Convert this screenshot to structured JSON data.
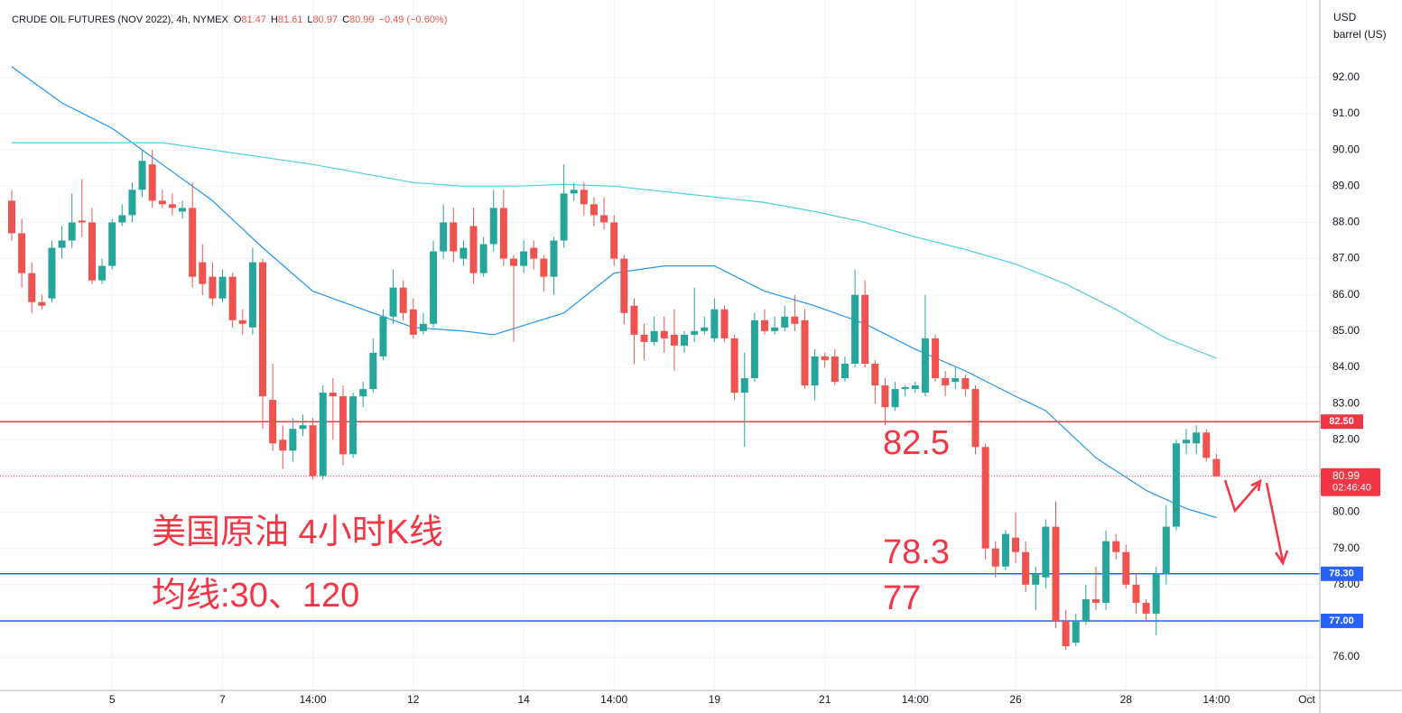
{
  "chart_data": {
    "type": "candlestick",
    "header": {
      "title": "CRUDE OIL FUTURES (NOV 2022), 4h, NYMEX",
      "ohlc": [
        {
          "label": "O",
          "value": 81.47
        },
        {
          "label": "H",
          "value": 81.61
        },
        {
          "label": "L",
          "value": 80.97
        },
        {
          "label": "C",
          "value": 80.99
        }
      ],
      "change": "−0.49 (−0.60%)"
    },
    "unit": [
      "USD",
      "barrel (US)"
    ],
    "categories": [
      null,
      null,
      null,
      null,
      null,
      null,
      null,
      null,
      null,
      null,
      "5",
      null,
      null,
      null,
      null,
      null,
      null,
      null,
      null,
      null,
      null,
      "7",
      null,
      null,
      null,
      null,
      null,
      null,
      null,
      null,
      "14:00",
      null,
      null,
      null,
      null,
      null,
      null,
      null,
      null,
      null,
      "12",
      null,
      null,
      null,
      null,
      null,
      null,
      null,
      null,
      null,
      null,
      "14",
      null,
      null,
      null,
      null,
      null,
      null,
      null,
      null,
      "14:00",
      null,
      null,
      null,
      null,
      null,
      null,
      null,
      null,
      null,
      "19",
      null,
      null,
      null,
      null,
      null,
      null,
      null,
      null,
      null,
      null,
      "21",
      null,
      null,
      null,
      null,
      null,
      null,
      null,
      null,
      "14:00",
      null,
      null,
      null,
      null,
      null,
      null,
      null,
      null,
      null,
      "26",
      null,
      null,
      null,
      null,
      null,
      null,
      null,
      null,
      null,
      null,
      "28",
      null,
      null,
      null,
      null,
      null,
      null,
      null,
      null,
      "14:00",
      null,
      null,
      null,
      null,
      null,
      null,
      null,
      null,
      "Oct",
      null
    ],
    "open": [
      88.6,
      87.7,
      86.6,
      85.8,
      85.9,
      87.3,
      87.5,
      88.05,
      88.0,
      86.4,
      86.8,
      88.0,
      88.2,
      88.9,
      89.6,
      88.6,
      88.5,
      88.3,
      88.4,
      86.9,
      86.5,
      85.9,
      86.5,
      85.3,
      85.1,
      86.9,
      83.1,
      82.0,
      81.7,
      82.3,
      82.4,
      81.0,
      83.3,
      83.2,
      81.6,
      83.2,
      83.4,
      84.3,
      85.4,
      86.2,
      85.6,
      85.0,
      85.2,
      87.2,
      88.0,
      87.0,
      87.9,
      86.6,
      87.4,
      88.4,
      87.0,
      86.8,
      87.3,
      87.0,
      86.5,
      87.5,
      88.8,
      88.9,
      88.5,
      88.2,
      88.0,
      87.0,
      85.7,
      84.9,
      84.7,
      85.0,
      84.9,
      84.6,
      84.9,
      85.0,
      84.8,
      85.6,
      84.8,
      83.3,
      83.7,
      85.3,
      85.0,
      85.1,
      85.4,
      85.3,
      83.5,
      84.3,
      84.3,
      83.7,
      84.1,
      86.0,
      84.1,
      83.5,
      82.9,
      83.4,
      83.4,
      83.3,
      84.8,
      83.7,
      83.6,
      83.7,
      83.4,
      81.8,
      79.0,
      78.5,
      79.3,
      78.9,
      78.0,
      78.2,
      79.6,
      77.0,
      76.4,
      77.0,
      77.6,
      77.5,
      79.2,
      78.9,
      78.0,
      77.5,
      77.2,
      78.3,
      79.6,
      81.9,
      81.9,
      82.2,
      81.47,
      null,
      null,
      null,
      null,
      null,
      null,
      null,
      null,
      null,
      null
    ],
    "high": [
      88.9,
      88.1,
      86.9,
      86.0,
      87.5,
      87.9,
      88.8,
      89.2,
      88.4,
      87.0,
      88.1,
      88.5,
      89.1,
      90.0,
      90.0,
      88.9,
      88.8,
      88.6,
      89.1,
      87.4,
      86.9,
      86.7,
      86.6,
      85.6,
      87.3,
      87.0,
      84.1,
      82.4,
      82.6,
      82.7,
      82.6,
      83.5,
      83.7,
      83.5,
      83.3,
      83.6,
      84.8,
      85.6,
      86.7,
      86.4,
      85.9,
      85.5,
      87.5,
      88.5,
      88.4,
      87.5,
      88.4,
      87.6,
      88.9,
      88.9,
      87.1,
      87.5,
      87.5,
      87.1,
      87.6,
      89.6,
      89.1,
      89.1,
      88.7,
      88.7,
      88.2,
      87.1,
      85.9,
      85.2,
      85.4,
      85.4,
      85.6,
      85.0,
      86.2,
      85.4,
      85.9,
      85.7,
      84.9,
      84.4,
      85.5,
      85.6,
      85.4,
      85.7,
      86.0,
      85.6,
      84.5,
      84.4,
      84.5,
      84.3,
      86.7,
      86.4,
      84.2,
      83.7,
      83.6,
      83.5,
      83.6,
      86.0,
      84.9,
      83.9,
      84.0,
      83.8,
      83.5,
      81.9,
      79.2,
      79.5,
      80.0,
      79.2,
      78.5,
      79.8,
      80.3,
      77.3,
      77.2,
      78.0,
      78.5,
      79.5,
      79.4,
      79.1,
      78.3,
      77.6,
      78.5,
      80.2,
      82.0,
      82.3,
      82.4,
      82.3,
      81.61,
      null,
      null,
      null,
      null,
      null,
      null,
      null,
      null,
      null,
      null
    ],
    "low": [
      87.5,
      86.2,
      85.5,
      85.6,
      85.8,
      87.0,
      87.3,
      87.6,
      86.3,
      86.3,
      86.7,
      87.9,
      88.0,
      88.7,
      88.4,
      88.4,
      88.2,
      88.1,
      86.2,
      86.0,
      85.7,
      85.8,
      85.1,
      84.9,
      84.9,
      82.3,
      81.7,
      81.2,
      81.4,
      82.1,
      80.9,
      80.9,
      82.0,
      81.3,
      81.5,
      82.9,
      83.3,
      84.2,
      85.2,
      85.3,
      84.8,
      84.9,
      85.1,
      87.0,
      86.9,
      86.8,
      86.3,
      86.5,
      87.2,
      86.8,
      84.7,
      86.6,
      86.7,
      86.1,
      86.0,
      87.3,
      88.6,
      88.2,
      87.9,
      87.8,
      86.8,
      85.2,
      84.1,
      84.2,
      84.6,
      84.4,
      83.9,
      84.4,
      84.7,
      84.9,
      84.7,
      84.7,
      83.1,
      81.8,
      83.6,
      84.9,
      84.9,
      85.0,
      85.0,
      83.4,
      83.1,
      84.0,
      83.5,
      83.6,
      84.0,
      84.0,
      83.0,
      82.4,
      82.8,
      83.2,
      83.3,
      83.2,
      83.6,
      83.2,
      83.4,
      83.2,
      81.6,
      78.7,
      78.2,
      78.4,
      78.6,
      77.8,
      77.3,
      77.9,
      76.8,
      76.2,
      76.3,
      76.9,
      77.3,
      77.3,
      78.7,
      77.9,
      77.2,
      77.0,
      76.6,
      78.0,
      79.5,
      81.6,
      81.6,
      81.4,
      80.97,
      null,
      null,
      null,
      null,
      null,
      null,
      null,
      null,
      null,
      null
    ],
    "close": [
      87.7,
      86.6,
      85.8,
      85.7,
      87.3,
      87.5,
      88.0,
      88.0,
      86.4,
      86.8,
      88.0,
      88.2,
      88.9,
      89.7,
      88.6,
      88.5,
      88.4,
      88.4,
      86.5,
      86.3,
      85.9,
      86.5,
      85.3,
      85.2,
      86.9,
      83.2,
      81.9,
      81.7,
      82.3,
      82.4,
      81.0,
      83.3,
      83.2,
      81.6,
      83.2,
      83.4,
      84.4,
      85.4,
      86.2,
      85.5,
      84.9,
      85.2,
      87.2,
      88.0,
      87.2,
      87.3,
      86.6,
      87.4,
      88.4,
      87.0,
      86.8,
      87.2,
      87.0,
      86.5,
      87.5,
      88.8,
      88.9,
      88.5,
      88.2,
      88.0,
      87.0,
      85.5,
      84.9,
      84.7,
      85.0,
      84.8,
      84.6,
      84.9,
      85.0,
      85.1,
      85.6,
      84.8,
      83.3,
      83.7,
      85.3,
      85.0,
      85.1,
      85.4,
      85.2,
      83.5,
      84.3,
      84.2,
      83.6,
      84.1,
      86.0,
      84.1,
      83.5,
      82.9,
      83.4,
      83.45,
      83.5,
      84.8,
      83.7,
      83.5,
      83.7,
      83.4,
      81.8,
      79.0,
      78.5,
      79.4,
      78.9,
      78.0,
      78.3,
      79.6,
      77.0,
      76.3,
      77.0,
      77.6,
      77.5,
      79.2,
      78.9,
      78.0,
      77.5,
      77.2,
      78.3,
      79.6,
      81.9,
      82.0,
      82.2,
      81.5,
      80.99,
      null,
      null,
      null,
      null,
      null,
      null,
      null,
      null,
      null,
      null
    ],
    "up_color": "#26a69a",
    "down_color": "#ef5350",
    "series": [
      {
        "color": "#2196f3",
        "x": [
          0,
          5,
          10,
          15,
          20,
          25,
          30,
          35,
          40,
          45,
          48,
          55,
          60,
          65,
          70,
          75,
          80,
          85,
          90,
          95,
          100,
          103,
          108,
          113,
          117,
          120
        ],
        "values": [
          92.3,
          91.3,
          90.6,
          89.6,
          88.6,
          87.3,
          86.1,
          85.6,
          85.1,
          85.0,
          84.9,
          85.5,
          86.6,
          86.8,
          86.8,
          86.1,
          85.7,
          85.2,
          84.5,
          83.9,
          83.2,
          82.8,
          81.5,
          80.6,
          80.1,
          79.85
        ]
      },
      {
        "color": "#4dd0e1",
        "x": [
          0,
          10,
          15,
          20,
          25,
          30,
          35,
          40,
          45,
          50,
          55,
          60,
          65,
          70,
          75,
          80,
          85,
          90,
          95,
          100,
          105,
          110,
          115,
          120
        ],
        "values": [
          90.2,
          90.2,
          90.2,
          90.0,
          89.8,
          89.6,
          89.35,
          89.1,
          89.0,
          89.0,
          89.05,
          89.0,
          88.85,
          88.7,
          88.55,
          88.3,
          88.0,
          87.6,
          87.25,
          86.85,
          86.3,
          85.6,
          84.8,
          84.25
        ]
      }
    ],
    "ylim": [
      75.08,
      94.14
    ],
    "yticks": [
      {
        "value": 76,
        "label": "76.00"
      },
      {
        "value": 77,
        "label": "77.00"
      },
      {
        "value": 78,
        "label": "78.00"
      },
      {
        "value": 79,
        "label": "79.00"
      },
      {
        "value": 80,
        "label": "80.00"
      },
      {
        "value": 81,
        "label": "81.00"
      },
      {
        "value": 82,
        "label": "82.00"
      },
      {
        "value": 83,
        "label": "83.00"
      },
      {
        "value": 84,
        "label": "84.00"
      },
      {
        "value": 85,
        "label": "85.00"
      },
      {
        "value": 86,
        "label": "86.00"
      },
      {
        "value": 87,
        "label": "87.00"
      },
      {
        "value": 88,
        "label": "88.00"
      },
      {
        "value": 89,
        "label": "89.00"
      },
      {
        "value": 90,
        "label": "90.00"
      },
      {
        "value": 91,
        "label": "91.00"
      },
      {
        "value": 92,
        "label": "92.00"
      }
    ],
    "grid": true,
    "levels": [
      {
        "value": 82.5,
        "label": "82.50",
        "color": "#f23645"
      },
      {
        "value": 78.3,
        "label": "78.30",
        "color": "#2962ff"
      },
      {
        "value": 77,
        "label": "77.00",
        "color": "#2962ff"
      }
    ],
    "last": {
      "value": 80.99,
      "countdown": "02:46:40",
      "color": "#f23645"
    },
    "annotations": [
      "82.5",
      "78.3",
      "77",
      "美国原油 4小时K线",
      "均线:30、120"
    ]
  }
}
